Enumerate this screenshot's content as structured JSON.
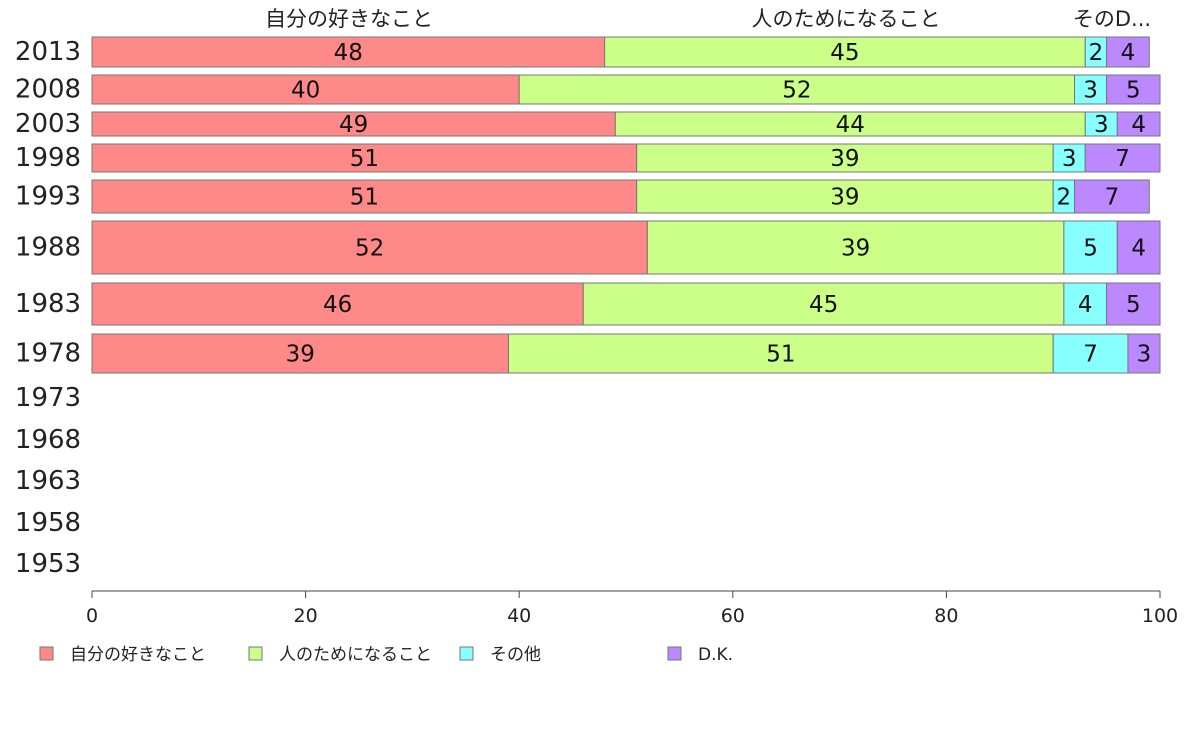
{
  "chart_data": {
    "type": "bar",
    "orientation": "horizontal",
    "stacked": true,
    "categories": [
      "2013",
      "2008",
      "2003",
      "1998",
      "1993",
      "1988",
      "1983",
      "1978",
      "1973",
      "1968",
      "1963",
      "1958",
      "1953"
    ],
    "series": [
      {
        "name": "自分の好きなこと",
        "color": "#ff8888",
        "values": [
          48,
          40,
          49,
          51,
          51,
          52,
          46,
          39,
          null,
          null,
          null,
          null,
          null
        ]
      },
      {
        "name": "人のためになること",
        "color": "#ccff88",
        "values": [
          45,
          52,
          44,
          39,
          39,
          39,
          45,
          51,
          null,
          null,
          null,
          null,
          null
        ]
      },
      {
        "name": "その他",
        "color": "#88ffff",
        "values": [
          2,
          3,
          3,
          3,
          2,
          5,
          4,
          7,
          null,
          null,
          null,
          null,
          null
        ]
      },
      {
        "name": "D.K.",
        "color": "#bb88ff",
        "values": [
          4,
          5,
          4,
          7,
          7,
          4,
          5,
          3,
          null,
          null,
          null,
          null,
          null
        ]
      }
    ],
    "column_headers": [
      "自分の好きなこと",
      "人のためになること",
      "そのD..."
    ],
    "xlim": [
      0,
      100
    ],
    "xticks": [
      "0",
      "20",
      "40",
      "60",
      "80",
      "100"
    ],
    "legend_position": "bottom",
    "grid": false
  }
}
